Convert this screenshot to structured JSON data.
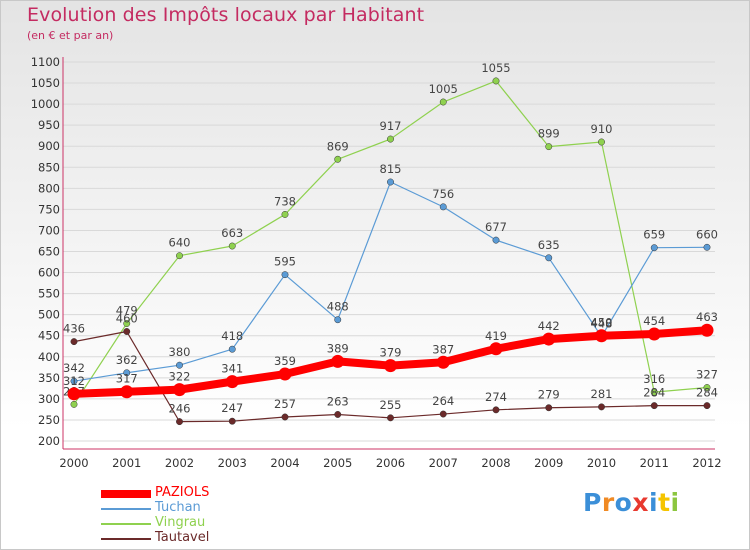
{
  "header": {
    "title": "Evolution des Impôts locaux par Habitant",
    "subtitle": "(en € et par an)"
  },
  "colors": {
    "title": "#c42b61",
    "axis": "#cc3366",
    "grid": "#d9d9d9"
  },
  "chart_data": {
    "type": "line",
    "title": "Evolution des Impôts locaux par Habitant",
    "subtitle": "(en € et par an)",
    "xlabel": "",
    "ylabel": "",
    "ylim": [
      200,
      1100
    ],
    "yticks": [
      200,
      250,
      300,
      350,
      400,
      450,
      500,
      550,
      600,
      650,
      700,
      750,
      800,
      850,
      900,
      950,
      1000,
      1050,
      1100
    ],
    "grid": "horizontal",
    "legend_position": "bottom-left",
    "x": [
      "2000",
      "2001",
      "2002",
      "2003",
      "2004",
      "2005",
      "2006",
      "2007",
      "2008",
      "2009",
      "2010",
      "2011",
      "2012"
    ],
    "series": [
      {
        "name": "PAZIOLS",
        "color": "#ff0000",
        "values": [
          312,
          317,
          322,
          341,
          359,
          389,
          379,
          387,
          419,
          442,
          450,
          454,
          463
        ]
      },
      {
        "name": "Tuchan",
        "color": "#5b9bd5",
        "values": [
          342,
          362,
          380,
          418,
          595,
          488,
          815,
          756,
          677,
          635,
          448,
          659,
          660
        ]
      },
      {
        "name": "Vingrau",
        "color": "#8fd14f",
        "values": [
          287,
          479,
          640,
          663,
          738,
          869,
          917,
          1005,
          1055,
          899,
          910,
          316,
          327
        ]
      },
      {
        "name": "Tautavel",
        "color": "#6b2a2a",
        "values": [
          436,
          460,
          246,
          247,
          257,
          263,
          255,
          264,
          274,
          279,
          281,
          284,
          284
        ]
      }
    ]
  },
  "logo": {
    "text": "Proxiti",
    "letter_colors": [
      "#3b8fd8",
      "#f08a24",
      "#3b8fd8",
      "#e8392f",
      "#3b8fd8",
      "#f5c400",
      "#8cc63f"
    ]
  }
}
